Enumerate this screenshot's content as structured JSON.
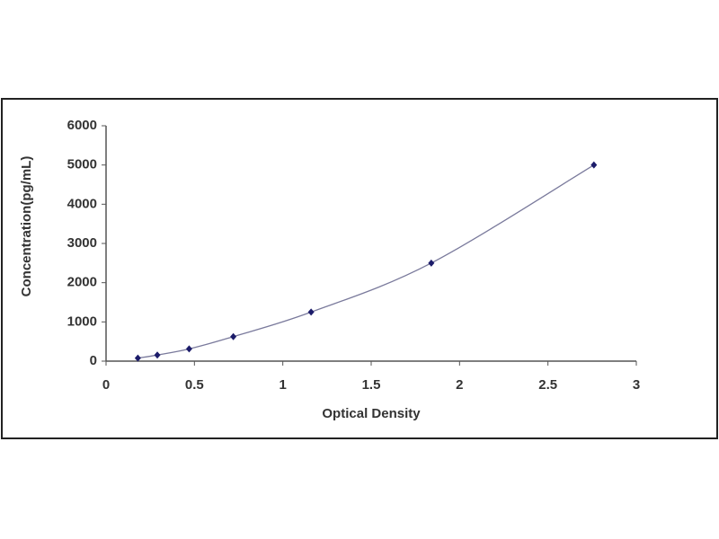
{
  "chart_data": {
    "type": "line",
    "x": [
      0.18,
      0.29,
      0.47,
      0.72,
      1.16,
      1.84,
      2.76
    ],
    "values": [
      78,
      156,
      312,
      625,
      1250,
      2500,
      5000
    ],
    "color": "#7a7a9c",
    "marker_color": "#1c1c6a",
    "x_label": "Optical Density",
    "y_label": "Concentration(pg/mL)",
    "xlim": [
      0,
      3
    ],
    "xticks": [
      0,
      0.5,
      1,
      1.5,
      2,
      2.5,
      3
    ],
    "ylim": [
      0,
      6000
    ],
    "yticks": [
      0,
      1000,
      2000,
      3000,
      4000,
      5000,
      6000
    ],
    "grid": false
  }
}
